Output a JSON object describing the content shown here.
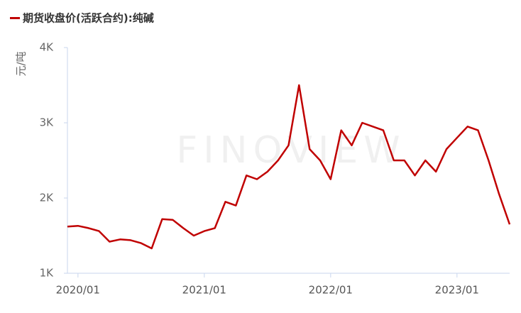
{
  "chart_data": {
    "type": "line",
    "y_label": "元/吨",
    "watermark": "FINOVIEW",
    "x": [
      "2019/12",
      "2020/01",
      "2020/02",
      "2020/03",
      "2020/04",
      "2020/05",
      "2020/06",
      "2020/07",
      "2020/08",
      "2020/09",
      "2020/10",
      "2020/11",
      "2020/12",
      "2021/01",
      "2021/02",
      "2021/03",
      "2021/04",
      "2021/05",
      "2021/06",
      "2021/07",
      "2021/08",
      "2021/09",
      "2021/10",
      "2021/11",
      "2021/12",
      "2022/01",
      "2022/02",
      "2022/03",
      "2022/04",
      "2022/05",
      "2022/06",
      "2022/07",
      "2022/08",
      "2022/09",
      "2022/10",
      "2022/11",
      "2022/12",
      "2023/01",
      "2023/02",
      "2023/03",
      "2023/04",
      "2023/05",
      "2023/06"
    ],
    "series": [
      {
        "name": "期货收盘价(活跃合约):纯碱",
        "color": "#c00000",
        "values": [
          1620,
          1630,
          1600,
          1560,
          1420,
          1450,
          1440,
          1400,
          1330,
          1720,
          1710,
          1600,
          1500,
          1560,
          1600,
          1950,
          1900,
          2300,
          2250,
          2350,
          2500,
          2700,
          3500,
          2650,
          2500,
          2250,
          2900,
          2700,
          3000,
          2950,
          2900,
          2500,
          2500,
          2300,
          2500,
          2350,
          2650,
          2800,
          2950,
          2900,
          2500,
          2050,
          1650
        ]
      }
    ],
    "xlim": [
      "2019/12",
      "2023/06"
    ],
    "xticks": [
      "2020/01",
      "2021/01",
      "2022/01",
      "2023/01"
    ],
    "ylim": [
      1000,
      4000
    ],
    "yticks": [
      {
        "value": 1000,
        "label": "1K"
      },
      {
        "value": 2000,
        "label": "2K"
      },
      {
        "value": 3000,
        "label": "3K"
      },
      {
        "value": 4000,
        "label": "4K"
      }
    ]
  }
}
